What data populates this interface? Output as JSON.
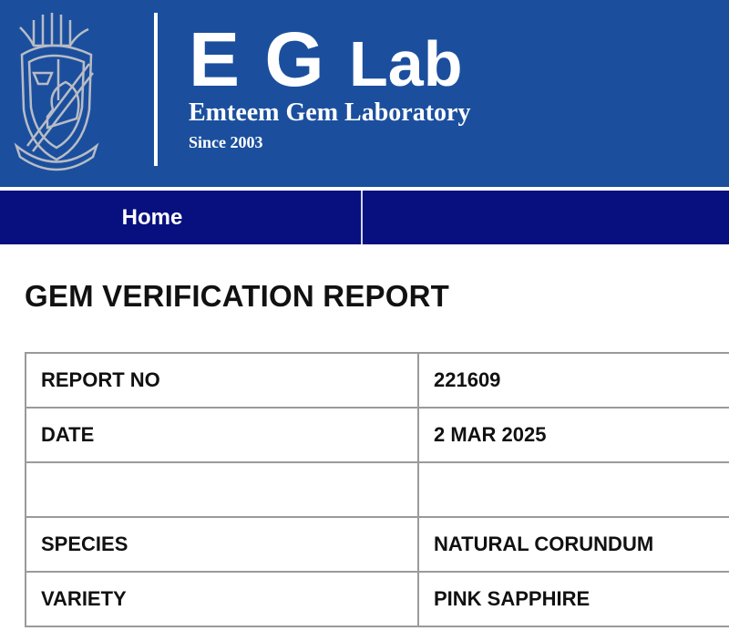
{
  "header": {
    "brand_main": "E G ",
    "brand_tail": "Lab",
    "subtitle": "Emteem Gem Laboratory",
    "since": "Since 2003",
    "logo_icon": "crest-microscope-diamond-icon",
    "bg_color": "#1b4f9e"
  },
  "nav": {
    "home_label": "Home",
    "bg_color": "#07107e"
  },
  "report": {
    "title": "GEM VERIFICATION REPORT",
    "rows": [
      {
        "label": "REPORT NO",
        "value": "221609"
      },
      {
        "label": "DATE",
        "value": "2 MAR 2025"
      },
      {
        "label": "",
        "value": ""
      },
      {
        "label": "SPECIES",
        "value": "NATURAL CORUNDUM"
      },
      {
        "label": "VARIETY",
        "value": "PINK SAPPHIRE"
      }
    ]
  }
}
